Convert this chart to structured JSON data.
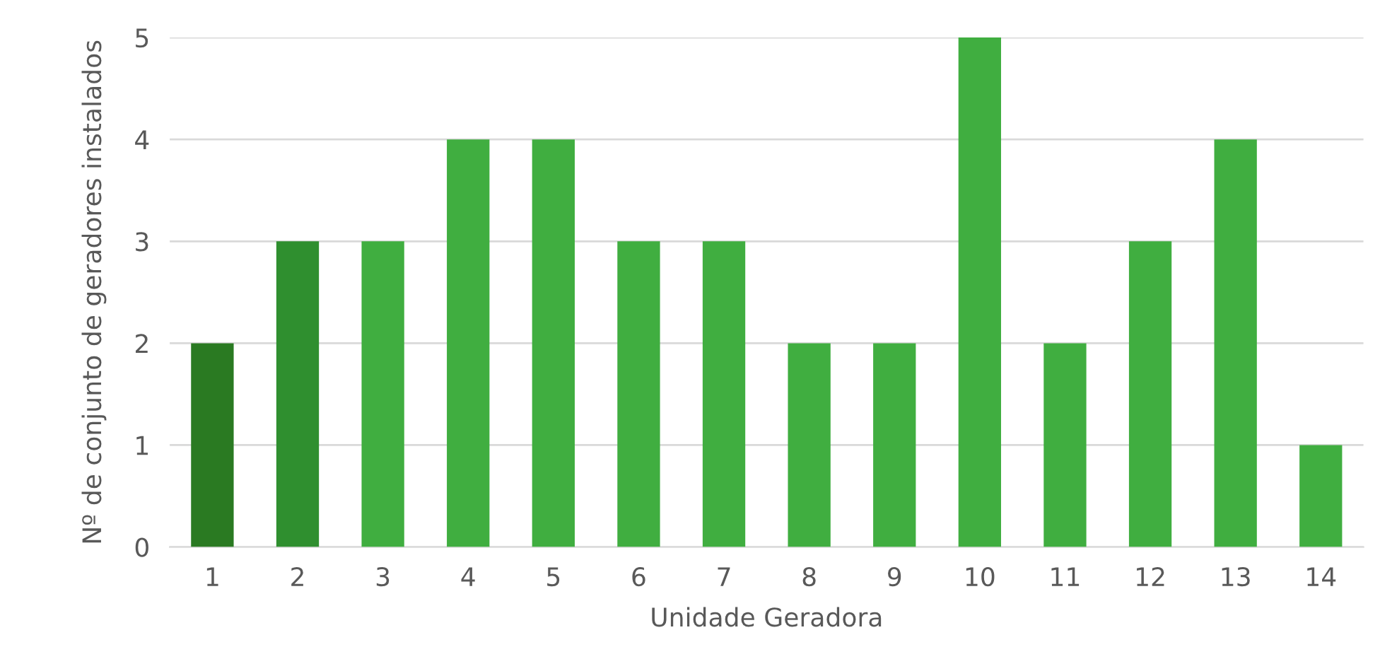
{
  "chart_data": {
    "type": "bar",
    "xlabel": "Unidade Geradora",
    "ylabel": "Nº de conjunto de geradores instalados",
    "categories": [
      "1",
      "2",
      "3",
      "4",
      "5",
      "6",
      "7",
      "8",
      "9",
      "10",
      "11",
      "12",
      "13",
      "14"
    ],
    "values": [
      2,
      3,
      3,
      4,
      4,
      3,
      3,
      2,
      2,
      5,
      2,
      3,
      4,
      1
    ],
    "colors": [
      "#2a7a22",
      "#2f8f2f",
      "#40ae40",
      "#40ae40",
      "#40ae40",
      "#40ae40",
      "#40ae40",
      "#40ae40",
      "#40ae40",
      "#40ae40",
      "#40ae40",
      "#40ae40",
      "#40ae40",
      "#40ae40"
    ],
    "ylim": [
      0,
      5
    ],
    "yticks": [
      0,
      1,
      2,
      3,
      4,
      5
    ],
    "grid": "y",
    "legend": false
  }
}
